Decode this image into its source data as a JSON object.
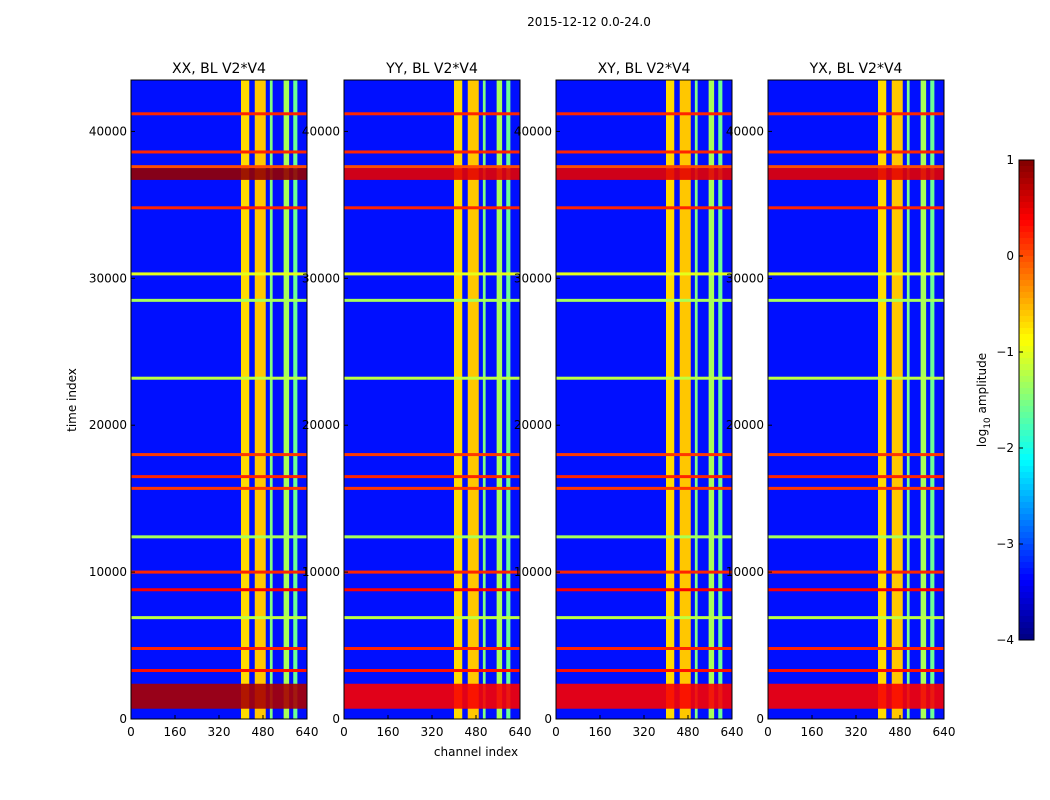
{
  "chart_data": {
    "type": "heatmap",
    "suptitle": "2015-12-12 0.0-24.0",
    "xlabel": "channel index",
    "ylabel": "time index",
    "xlim": [
      0,
      640
    ],
    "ylim": [
      0,
      43500
    ],
    "xticks": [
      0,
      160,
      320,
      480,
      640
    ],
    "yticks": [
      0,
      10000,
      20000,
      30000,
      40000
    ],
    "panels": [
      {
        "title": "XX, BL V2*V4"
      },
      {
        "title": "YY, BL V2*V4"
      },
      {
        "title": "XY, BL V2*V4"
      },
      {
        "title": "YX, BL V2*V4"
      }
    ],
    "colorbar": {
      "label": "log10 amplitude",
      "label_main": "log",
      "label_sub": "10",
      "label_rest": " amplitude",
      "range": [
        -4,
        1
      ],
      "ticks": [
        "1",
        "0",
        "−1",
        "−2",
        "−3",
        "−4"
      ],
      "colormap": "jet"
    },
    "features": {
      "background_level": -3.3,
      "bright_channel_bands": [
        {
          "from": 400,
          "to": 430,
          "level": -0.7
        },
        {
          "from": 450,
          "to": 490,
          "level": -0.6
        },
        {
          "from": 505,
          "to": 515,
          "level": -1.5
        },
        {
          "from": 555,
          "to": 575,
          "level": -1.3
        },
        {
          "from": 590,
          "to": 605,
          "level": -1.6
        }
      ],
      "saturated_time_ranges": [
        {
          "from": 700,
          "to": 2400,
          "level": 0.8
        },
        {
          "from": 36700,
          "to": 37500,
          "level": 0.9
        }
      ],
      "horizontal_lines": [
        {
          "t": 41200,
          "level": 0.2
        },
        {
          "t": 38600,
          "level": 0.2
        },
        {
          "t": 37600,
          "level": 0.0
        },
        {
          "t": 34800,
          "level": 0.2
        },
        {
          "t": 30300,
          "level": -1.0
        },
        {
          "t": 28500,
          "level": -1.3
        },
        {
          "t": 23200,
          "level": -1.2
        },
        {
          "t": 18000,
          "level": 0.1
        },
        {
          "t": 16500,
          "level": 0.2
        },
        {
          "t": 15700,
          "level": 0.1
        },
        {
          "t": 12400,
          "level": -1.3
        },
        {
          "t": 10000,
          "level": 0.2
        },
        {
          "t": 8800,
          "level": 0.4
        },
        {
          "t": 6900,
          "level": -1.2
        },
        {
          "t": 4800,
          "level": 0.2
        },
        {
          "t": 3300,
          "level": 0.3
        }
      ]
    }
  }
}
